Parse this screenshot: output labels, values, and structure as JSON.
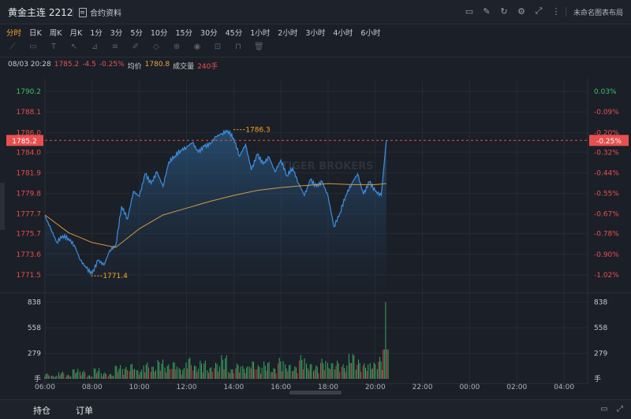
{
  "header": {
    "title": "黄金主连 2212",
    "doc_label": "合约资料",
    "layout_label": "未命名图表布局"
  },
  "periods": [
    "分时",
    "日K",
    "周K",
    "月K",
    "1分",
    "3分",
    "5分",
    "10分",
    "15分",
    "30分",
    "45分",
    "1小时",
    "2小时",
    "3小时",
    "4小时",
    "6小时"
  ],
  "active_period": "分时",
  "info": {
    "datetime": "08/03 20:28",
    "price": "1785.2",
    "change": "-4.5",
    "change_pct": "-0.25%",
    "avg_label": "均价",
    "avg_value": "1780.8",
    "vol_label": "成交量",
    "vol_value": "240手"
  },
  "watermark": "TIGER BROKERS",
  "bottom": {
    "tab_hold": "持仓",
    "tab_order": "订单"
  },
  "colors": {
    "up": "#3fbf6f",
    "down": "#e8504f",
    "price_line": "#3d8fe0",
    "avg_line": "#d39a45",
    "highlight": "#f5a623"
  },
  "chart_data": {
    "type": "line",
    "x_ticks": [
      "06:00",
      "08:00",
      "10:00",
      "12:00",
      "14:00",
      "16:00",
      "18:00",
      "20:00",
      "22:00",
      "00:00",
      "02:00",
      "04:00"
    ],
    "y_ticks": [
      "1790.2",
      "1788.1",
      "1786.0",
      "1784.0",
      "1781.9",
      "1779.8",
      "1777.7",
      "1775.7",
      "1773.6",
      "1771.5"
    ],
    "pct_ticks": [
      "0.03%",
      "-0.09%",
      "-0.20%",
      "-0.32%",
      "-0.44%",
      "-0.55%",
      "-0.67%",
      "-0.78%",
      "-0.90%",
      "-1.02%"
    ],
    "current_price": "1785.2",
    "current_pct": "-0.25%",
    "high_label": "1786.3",
    "low_label": "1771.4",
    "volume_ticks": [
      "838",
      "558",
      "279"
    ],
    "volume_unit": "手",
    "ylim": [
      1771.5,
      1790.2
    ],
    "price_series": {
      "times": [
        6.0,
        6.25,
        6.5,
        6.75,
        7.0,
        7.25,
        7.5,
        7.75,
        8.0,
        8.25,
        8.5,
        8.75,
        9.0,
        9.25,
        9.5,
        9.75,
        10.0,
        10.25,
        10.5,
        10.75,
        11.0,
        11.25,
        11.5,
        11.75,
        12.0,
        12.25,
        12.5,
        12.75,
        13.0,
        13.25,
        13.5,
        13.75,
        14.0,
        14.25,
        14.5,
        14.75,
        15.0,
        15.25,
        15.5,
        15.75,
        16.0,
        16.25,
        16.5,
        16.75,
        17.0,
        17.25,
        17.5,
        17.75,
        18.0,
        18.25,
        18.5,
        18.75,
        19.0,
        19.25,
        19.5,
        19.75,
        20.0,
        20.25,
        20.47
      ],
      "values": [
        1777.5,
        1776.2,
        1774.8,
        1775.5,
        1775.2,
        1774.5,
        1773.0,
        1772.2,
        1771.6,
        1773.0,
        1772.5,
        1774.0,
        1774.5,
        1778.5,
        1777.2,
        1780.0,
        1779.5,
        1781.8,
        1780.8,
        1782.0,
        1780.5,
        1783.0,
        1783.6,
        1784.2,
        1784.5,
        1785.0,
        1784.0,
        1784.6,
        1784.8,
        1785.6,
        1785.9,
        1786.2,
        1785.4,
        1783.6,
        1784.8,
        1782.2,
        1783.8,
        1782.8,
        1783.5,
        1782.0,
        1783.2,
        1781.6,
        1782.4,
        1780.8,
        1779.6,
        1781.2,
        1780.5,
        1781.0,
        1779.5,
        1776.4,
        1777.8,
        1779.6,
        1780.8,
        1781.8,
        1779.7,
        1781.0,
        1780.0,
        1779.6,
        1785.2
      ]
    },
    "avg_series": {
      "times": [
        6.0,
        7.0,
        8.0,
        9.0,
        10.0,
        11.0,
        12.0,
        13.0,
        14.0,
        15.0,
        16.0,
        17.0,
        18.0,
        19.0,
        20.0,
        20.47
      ],
      "values": [
        1777.6,
        1775.8,
        1774.8,
        1774.3,
        1776.2,
        1777.6,
        1778.3,
        1779.0,
        1779.6,
        1780.1,
        1780.4,
        1780.6,
        1780.8,
        1780.7,
        1780.7,
        1780.8
      ]
    },
    "volume_series": {
      "times": [
        6.1,
        6.4,
        6.7,
        7.0,
        7.3,
        7.6,
        7.9,
        8.2,
        8.5,
        8.8,
        9.1,
        9.4,
        9.7,
        10.0,
        10.3,
        10.6,
        10.9,
        11.2,
        11.5,
        11.8,
        12.1,
        12.4,
        12.7,
        13.0,
        13.3,
        13.6,
        13.9,
        14.2,
        14.5,
        14.8,
        15.1,
        15.4,
        15.7,
        16.0,
        16.3,
        16.6,
        16.9,
        17.2,
        17.5,
        17.8,
        18.1,
        18.4,
        18.7,
        19.0,
        19.3,
        19.6,
        19.9,
        20.2,
        20.45
      ],
      "values": [
        60,
        35,
        80,
        45,
        110,
        90,
        40,
        120,
        70,
        55,
        150,
        130,
        170,
        100,
        180,
        140,
        210,
        160,
        190,
        120,
        240,
        150,
        200,
        130,
        180,
        260,
        110,
        170,
        140,
        200,
        150,
        190,
        120,
        230,
        160,
        140,
        260,
        170,
        150,
        220,
        180,
        200,
        160,
        280,
        210,
        170,
        180,
        240,
        838
      ]
    }
  }
}
